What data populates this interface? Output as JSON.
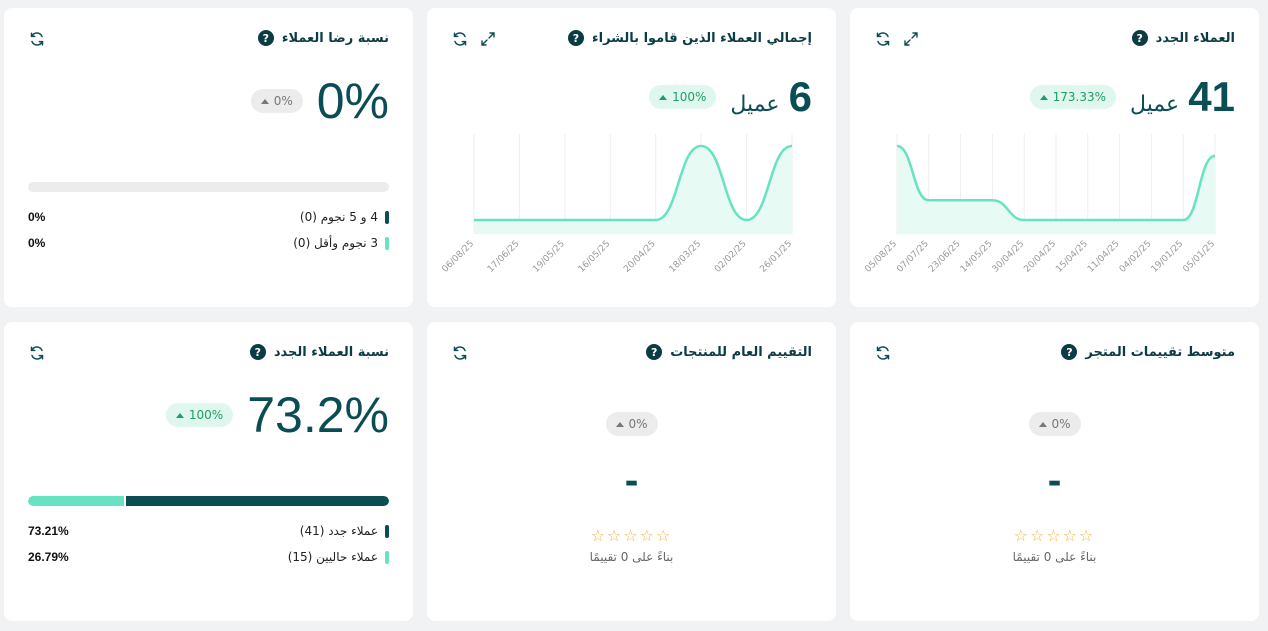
{
  "colors": {
    "dark": "#0b4d54",
    "teal": "#67e2c2",
    "teal_fill": "#e8faf4",
    "grid": "#eeeeee"
  },
  "icons": {
    "refresh": "refresh-icon",
    "expand": "expand-icon",
    "help": "help-icon"
  },
  "help_glyph": "?",
  "new_customers": {
    "title": "العملاء الجدد",
    "value": "41",
    "unit": "عميل",
    "change": "173.33%",
    "chart_data": {
      "type": "area",
      "x": [
        "05/01/25",
        "19/01/25",
        "04/02/25",
        "11/04/25",
        "15/04/25",
        "20/04/25",
        "30/04/25",
        "14/05/25",
        "23/06/25",
        "07/07/25",
        "05/08/25"
      ],
      "series": [
        {
          "values": [
            13,
            0,
            0,
            0,
            0,
            0,
            0,
            4,
            4,
            4,
            15
          ]
        }
      ]
    }
  },
  "purchasing_customers": {
    "title": "إجمالي العملاء الذين قاموا بالشراء",
    "value": "6",
    "unit": "عميل",
    "change": "100%",
    "chart_data": {
      "type": "area",
      "x": [
        "26/01/25",
        "02/02/25",
        "18/03/25",
        "20/04/25",
        "16/05/25",
        "19/05/25",
        "17/06/25",
        "06/08/25"
      ],
      "series": [
        {
          "values": [
            2,
            0,
            2,
            0,
            0,
            0,
            0,
            0
          ]
        }
      ]
    }
  },
  "satisfaction": {
    "title": "نسبة رضا العملاء",
    "value": "0%",
    "change": "0%",
    "bar_fraction": 0,
    "legend": [
      {
        "label": "4 و 5 نجوم (0)",
        "pct": "0%",
        "color": "#0b4d54"
      },
      {
        "label": "3 نجوم وأقل (0)",
        "pct": "0%",
        "color": "#67e2c2"
      }
    ]
  },
  "store_rating": {
    "title": "متوسط تقييمات المتجر",
    "change": "0%",
    "value": "-",
    "stars": "☆☆☆☆☆",
    "based_on": "بناءً على 0 تقييمًا"
  },
  "products_rating": {
    "title": "التقييم العام للمنتجات",
    "change": "0%",
    "value": "-",
    "stars": "☆☆☆☆☆",
    "based_on": "بناءً على 0 تقييمًا"
  },
  "new_customers_ratio": {
    "title": "نسبة العملاء الجدد",
    "value": "73.2%",
    "change": "100%",
    "bar_fraction": 0.7321,
    "legend": [
      {
        "label": "عملاء جدد (41)",
        "pct": "73.21%",
        "color": "#0b4d54"
      },
      {
        "label": "عملاء حاليين (15)",
        "pct": "26.79%",
        "color": "#67e2c2"
      }
    ]
  }
}
